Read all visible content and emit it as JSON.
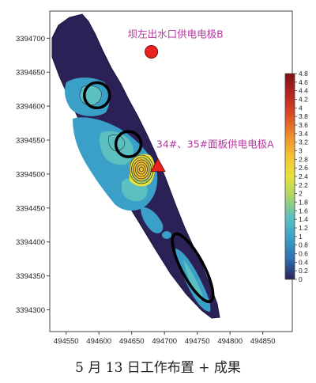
{
  "caption": "5 月 13 日工作布置 + 成果",
  "chart_data": {
    "type": "heatmap",
    "title": "",
    "xlabel": "",
    "ylabel": "",
    "xlim": [
      494525,
      494895
    ],
    "ylim": [
      3394268,
      3394740
    ],
    "x_ticks": [
      "494550",
      "494600",
      "494650",
      "494700",
      "494750",
      "494800",
      "494850"
    ],
    "y_ticks": [
      "3394700",
      "3394650",
      "3394600",
      "3394550",
      "3394500",
      "3394450",
      "3394400",
      "3394350",
      "3394300"
    ],
    "colorbar": {
      "range": [
        0,
        4.8
      ],
      "ticks": [
        "4.8",
        "4.6",
        "4.4",
        "4.2",
        "4",
        "3.8",
        "3.6",
        "3.4",
        "3.2",
        "3",
        "2.8",
        "2.6",
        "2.4",
        "2.2",
        "2",
        "1.8",
        "1.6",
        "1.4",
        "1.2",
        "1",
        "0.8",
        "0.6",
        "0.4",
        "0.2",
        "0"
      ],
      "colors": [
        "#2b2156",
        "#2f6fb1",
        "#3aa0c8",
        "#5cc0c0",
        "#a7d46a",
        "#e6e23a",
        "#f2c331",
        "#ee8c2a",
        "#dd4a25",
        "#b62424",
        "#7a1313"
      ]
    },
    "points": [
      {
        "name": "坝左出水口供电电极B",
        "x": 494680,
        "y": 3394680,
        "marker": "circle",
        "color": "#e8231f"
      },
      {
        "name": "34#、35#面板供电电极A",
        "x": 494690,
        "y": 3394512,
        "marker": "triangle",
        "color": "#e8231f"
      }
    ],
    "highlights": [
      {
        "x": 494597,
        "y": 3394616,
        "kind": "circle"
      },
      {
        "x": 494645,
        "y": 3394544,
        "kind": "circle"
      },
      {
        "x": 494743,
        "y": 3394362,
        "kind": "ellipse"
      }
    ]
  }
}
